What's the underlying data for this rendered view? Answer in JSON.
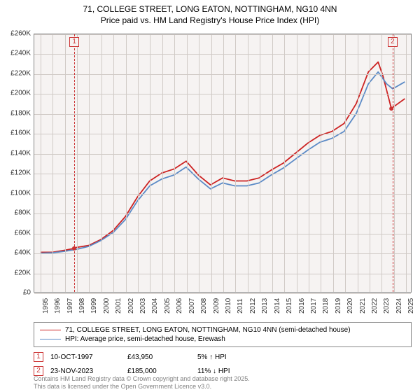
{
  "title_line1": "71, COLLEGE STREET, LONG EATON, NOTTINGHAM, NG10 4NN",
  "title_line2": "Price paid vs. HM Land Registry's House Price Index (HPI)",
  "chart": {
    "type": "line",
    "background_color": "#f6f3f2",
    "grid_color": "#d0cac6",
    "border_color": "#888888",
    "x_years": [
      1995,
      1996,
      1997,
      1998,
      1999,
      2000,
      2001,
      2002,
      2003,
      2004,
      2005,
      2006,
      2007,
      2008,
      2009,
      2010,
      2011,
      2012,
      2013,
      2014,
      2015,
      2016,
      2017,
      2018,
      2019,
      2020,
      2021,
      2022,
      2023,
      2024,
      2025
    ],
    "xlim": [
      1994.5,
      2025.5
    ],
    "y_ticks": [
      0,
      20000,
      40000,
      60000,
      80000,
      100000,
      120000,
      140000,
      160000,
      180000,
      200000,
      220000,
      240000,
      260000
    ],
    "y_tick_labels": [
      "£0",
      "£20K",
      "£40K",
      "£60K",
      "£80K",
      "£100K",
      "£120K",
      "£140K",
      "£160K",
      "£180K",
      "£200K",
      "£220K",
      "£240K",
      "£260K"
    ],
    "ylim": [
      0,
      260000
    ],
    "series": [
      {
        "name": "71, COLLEGE STREET, LONG EATON, NOTTINGHAM, NG10 4NN (semi-detached house)",
        "color": "#cc2222",
        "line_width": 1.8,
        "data": [
          [
            1995,
            40000
          ],
          [
            1996,
            40000
          ],
          [
            1997,
            42000
          ],
          [
            1997.78,
            43950
          ],
          [
            1998,
            45000
          ],
          [
            1999,
            47000
          ],
          [
            2000,
            53000
          ],
          [
            2001,
            62000
          ],
          [
            2002,
            76000
          ],
          [
            2003,
            96000
          ],
          [
            2004,
            112000
          ],
          [
            2005,
            120000
          ],
          [
            2006,
            124000
          ],
          [
            2007,
            132000
          ],
          [
            2008,
            118000
          ],
          [
            2009,
            108000
          ],
          [
            2010,
            115000
          ],
          [
            2011,
            112000
          ],
          [
            2012,
            112000
          ],
          [
            2013,
            115000
          ],
          [
            2014,
            123000
          ],
          [
            2015,
            130000
          ],
          [
            2016,
            140000
          ],
          [
            2017,
            150000
          ],
          [
            2018,
            158000
          ],
          [
            2019,
            162000
          ],
          [
            2020,
            170000
          ],
          [
            2021,
            190000
          ],
          [
            2022,
            222000
          ],
          [
            2022.8,
            232000
          ],
          [
            2023.2,
            218000
          ],
          [
            2023.89,
            185000
          ],
          [
            2024.2,
            188000
          ],
          [
            2025,
            195000
          ]
        ]
      },
      {
        "name": "HPI: Average price, semi-detached house, Erewash",
        "color": "#5b8ac6",
        "line_width": 1.6,
        "data": [
          [
            1995,
            39000
          ],
          [
            1996,
            39500
          ],
          [
            1997,
            41000
          ],
          [
            1998,
            43000
          ],
          [
            1999,
            46000
          ],
          [
            2000,
            52000
          ],
          [
            2001,
            60000
          ],
          [
            2002,
            73000
          ],
          [
            2003,
            92000
          ],
          [
            2004,
            107000
          ],
          [
            2005,
            114000
          ],
          [
            2006,
            118000
          ],
          [
            2007,
            126000
          ],
          [
            2008,
            114000
          ],
          [
            2009,
            104000
          ],
          [
            2010,
            110000
          ],
          [
            2011,
            107000
          ],
          [
            2012,
            107000
          ],
          [
            2013,
            110000
          ],
          [
            2014,
            118000
          ],
          [
            2015,
            125000
          ],
          [
            2016,
            134000
          ],
          [
            2017,
            143000
          ],
          [
            2018,
            151000
          ],
          [
            2019,
            155000
          ],
          [
            2020,
            162000
          ],
          [
            2021,
            180000
          ],
          [
            2022,
            210000
          ],
          [
            2022.8,
            222000
          ],
          [
            2023.5,
            210000
          ],
          [
            2024,
            205000
          ],
          [
            2025,
            212000
          ]
        ]
      }
    ],
    "markers": [
      {
        "n": "1",
        "year": 1997.78,
        "value": 43950,
        "date": "10-OCT-1997",
        "price": "£43,950",
        "pct": "5% ↑ HPI"
      },
      {
        "n": "2",
        "year": 2023.89,
        "value": 185000,
        "date": "23-NOV-2023",
        "price": "£185,000",
        "pct": "11% ↓ HPI"
      }
    ],
    "marker_color": "#cc3333"
  },
  "footer_line1": "Contains HM Land Registry data © Crown copyright and database right 2025.",
  "footer_line2": "This data is licensed under the Open Government Licence v3.0."
}
